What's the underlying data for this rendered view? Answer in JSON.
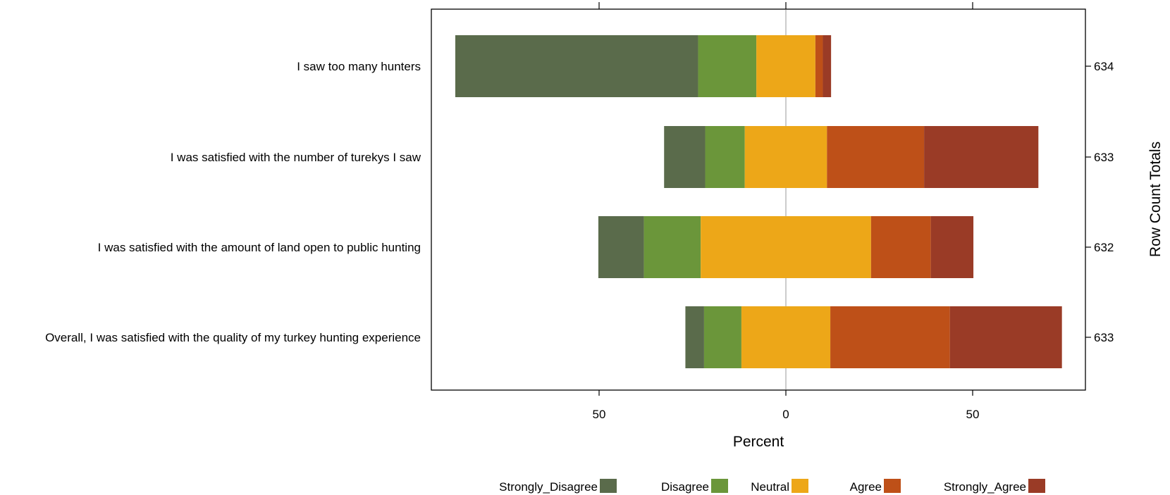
{
  "chart_data": {
    "type": "bar",
    "subtype": "diverging-stacked-likert",
    "xlabel": "Percent",
    "ylabel_right": "Row Count Totals",
    "xlim": [
      -95,
      80
    ],
    "x_ticks": [
      -50,
      0,
      50
    ],
    "x_tick_labels": [
      "50",
      "0",
      "50"
    ],
    "zero_line": true,
    "legend_position": "bottom",
    "categories": [
      "I saw too many hunters",
      "I was satisfied with the number of turekys I saw",
      "I was satisfied with the amount of land open to public hunting",
      "Overall, I was satisfied with the quality of my turkey hunting experience"
    ],
    "row_totals": [
      "634",
      "633",
      "632",
      "633"
    ],
    "series": [
      {
        "name": "Strongly_Disagree",
        "color": "#5A6B4B",
        "values": [
          65,
          11,
          12.2,
          5
        ]
      },
      {
        "name": "Disagree",
        "color": "#6B963A",
        "values": [
          15.6,
          10.6,
          15.2,
          10
        ]
      },
      {
        "name": "Neutral",
        "color": "#EDA718",
        "values": [
          15.8,
          22,
          45.6,
          23.8
        ]
      },
      {
        "name": "Agree",
        "color": "#BE5018",
        "values": [
          2,
          26,
          16,
          32
        ]
      },
      {
        "name": "Strongly_Agree",
        "color": "#9A3B26",
        "values": [
          2.2,
          30.6,
          11.4,
          30
        ]
      }
    ],
    "neutral_split": "half"
  }
}
